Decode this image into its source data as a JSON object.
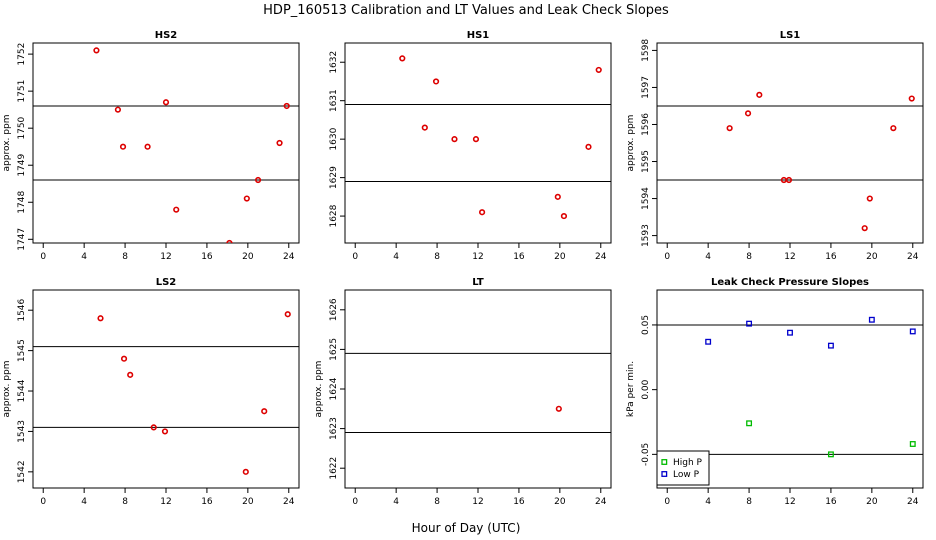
{
  "figure": {
    "title": "HDP_160513  Calibration and LT Values and Leak Check Slopes",
    "xlabel": "Hour of Day (UTC)"
  },
  "chart_data": [
    {
      "type": "scatter",
      "title": "HS2",
      "ylabel": "approx. ppm",
      "xlim": [
        -1,
        25
      ],
      "xticks": [
        0,
        4,
        8,
        12,
        16,
        20,
        24
      ],
      "ylim": [
        1746.9,
        1752.3
      ],
      "yticks": [
        1747,
        1748,
        1749,
        1750,
        1751,
        1752
      ],
      "hlines": [
        1750.6,
        1748.6
      ],
      "series": [
        {
          "color": "#dd0000",
          "marker": "circle",
          "points": [
            [
              5.2,
              1752.1
            ],
            [
              7.3,
              1750.5
            ],
            [
              7.8,
              1749.5
            ],
            [
              10.2,
              1749.5
            ],
            [
              12.0,
              1750.7
            ],
            [
              13.0,
              1747.8
            ],
            [
              18.2,
              1746.9
            ],
            [
              19.9,
              1748.1
            ],
            [
              21.0,
              1748.6
            ],
            [
              23.1,
              1749.6
            ],
            [
              23.8,
              1750.6
            ]
          ]
        }
      ]
    },
    {
      "type": "scatter",
      "title": "HS1",
      "ylabel": "",
      "xlim": [
        -1,
        25
      ],
      "xticks": [
        0,
        4,
        8,
        12,
        16,
        20,
        24
      ],
      "ylim": [
        1627.3,
        1632.5
      ],
      "yticks": [
        1628,
        1629,
        1630,
        1631,
        1632
      ],
      "hlines": [
        1630.9,
        1628.9
      ],
      "series": [
        {
          "color": "#dd0000",
          "marker": "circle",
          "points": [
            [
              4.6,
              1632.1
            ],
            [
              6.8,
              1630.3
            ],
            [
              7.9,
              1631.5
            ],
            [
              9.7,
              1630.0
            ],
            [
              11.8,
              1630.0
            ],
            [
              12.4,
              1628.1
            ],
            [
              19.8,
              1628.5
            ],
            [
              20.4,
              1628.0
            ],
            [
              22.8,
              1629.8
            ],
            [
              23.8,
              1631.8
            ]
          ]
        }
      ]
    },
    {
      "type": "scatter",
      "title": "LS1",
      "ylabel": "approx. ppm",
      "xlim": [
        -1,
        25
      ],
      "xticks": [
        0,
        4,
        8,
        12,
        16,
        20,
        24
      ],
      "ylim": [
        1592.8,
        1598.2
      ],
      "yticks": [
        1593,
        1594,
        1595,
        1596,
        1597,
        1598
      ],
      "hlines": [
        1596.5,
        1594.5
      ],
      "series": [
        {
          "color": "#dd0000",
          "marker": "circle",
          "points": [
            [
              6.1,
              1595.9
            ],
            [
              7.9,
              1596.3
            ],
            [
              9.0,
              1596.8
            ],
            [
              11.4,
              1594.5
            ],
            [
              11.9,
              1594.5
            ],
            [
              19.3,
              1593.2
            ],
            [
              19.8,
              1594.0
            ],
            [
              22.1,
              1595.9
            ],
            [
              23.9,
              1596.7
            ]
          ]
        }
      ]
    },
    {
      "type": "scatter",
      "title": "LS2",
      "ylabel": "approx. ppm",
      "xlim": [
        -1,
        25
      ],
      "xticks": [
        0,
        4,
        8,
        12,
        16,
        20,
        24
      ],
      "ylim": [
        1541.6,
        1546.5
      ],
      "yticks": [
        1542,
        1543,
        1544,
        1545,
        1546
      ],
      "hlines": [
        1545.1,
        1543.1
      ],
      "series": [
        {
          "color": "#dd0000",
          "marker": "circle",
          "points": [
            [
              5.6,
              1545.8
            ],
            [
              7.9,
              1544.8
            ],
            [
              8.5,
              1544.4
            ],
            [
              10.8,
              1543.1
            ],
            [
              11.9,
              1543.0
            ],
            [
              19.8,
              1542.0
            ],
            [
              21.6,
              1543.5
            ],
            [
              23.9,
              1545.9
            ]
          ]
        }
      ]
    },
    {
      "type": "scatter",
      "title": "LT",
      "ylabel": "approx. ppm",
      "xlim": [
        -1,
        25
      ],
      "xticks": [
        0,
        4,
        8,
        12,
        16,
        20,
        24
      ],
      "ylim": [
        1621.5,
        1626.5
      ],
      "yticks": [
        1622,
        1623,
        1624,
        1625,
        1626
      ],
      "hlines": [
        1624.9,
        1622.9
      ],
      "series": [
        {
          "color": "#dd0000",
          "marker": "circle",
          "points": [
            [
              19.9,
              1623.5
            ]
          ]
        }
      ]
    },
    {
      "type": "scatter",
      "title": "Leak Check Pressure Slopes",
      "ylabel": "kPa per min.",
      "xlim": [
        -1,
        25
      ],
      "xticks": [
        0,
        4,
        8,
        12,
        16,
        20,
        24
      ],
      "ylim": [
        -0.076,
        0.077
      ],
      "yticks": [
        -0.05,
        0.0,
        0.05
      ],
      "ytick_labels": [
        "-0.05",
        "0.00",
        "0.05"
      ],
      "hlines": [
        0.05,
        -0.05
      ],
      "legend": "bottom-left",
      "series": [
        {
          "name": "High P",
          "color": "#00bb00",
          "marker": "square",
          "points": [
            [
              8,
              -0.026
            ],
            [
              16,
              -0.05
            ],
            [
              24,
              -0.042
            ]
          ]
        },
        {
          "name": "Low P",
          "color": "#0000cc",
          "marker": "square",
          "points": [
            [
              4,
              0.037
            ],
            [
              8,
              0.051
            ],
            [
              12,
              0.044
            ],
            [
              16,
              0.034
            ],
            [
              20,
              0.054
            ],
            [
              24,
              0.045
            ]
          ]
        }
      ]
    }
  ]
}
